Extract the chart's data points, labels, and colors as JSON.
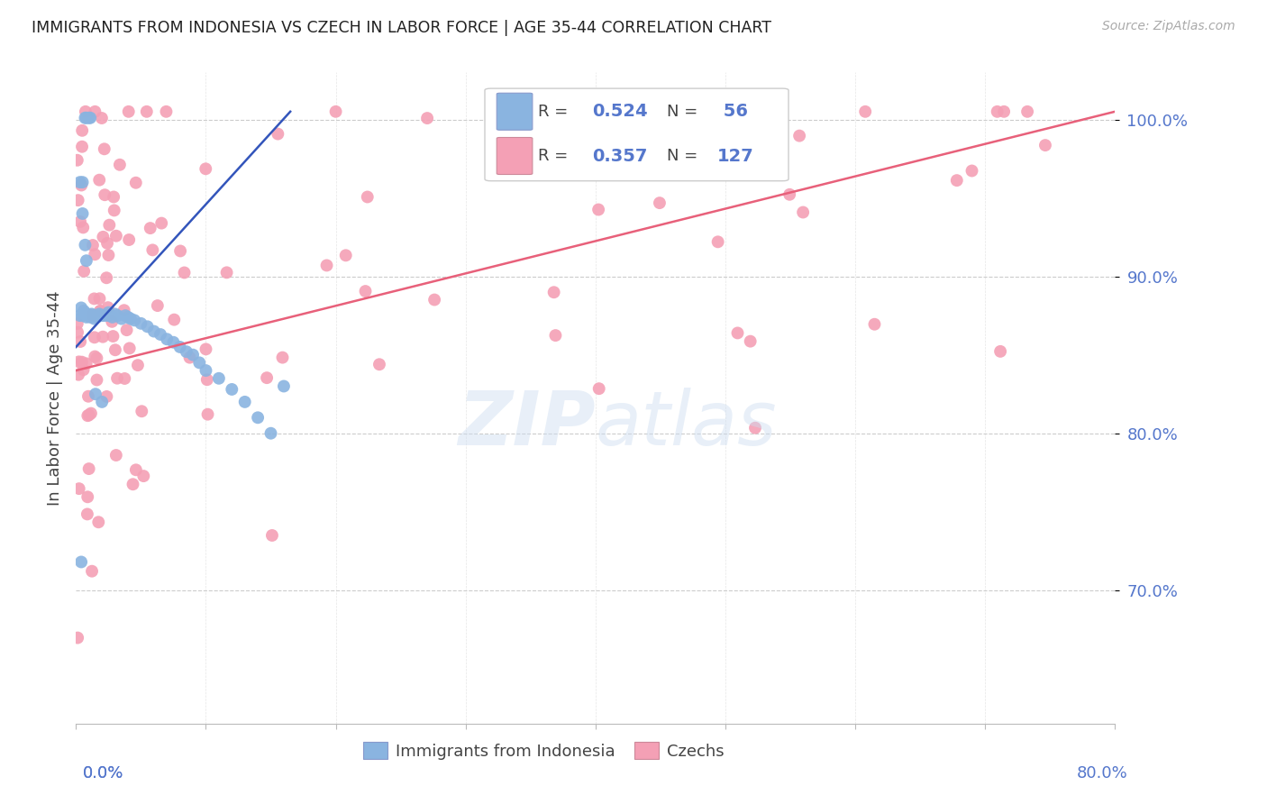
{
  "title": "IMMIGRANTS FROM INDONESIA VS CZECH IN LABOR FORCE | AGE 35-44 CORRELATION CHART",
  "source": "Source: ZipAtlas.com",
  "ylabel": "In Labor Force | Age 35-44",
  "ytick_vals": [
    0.7,
    0.8,
    0.9,
    1.0
  ],
  "xlim": [
    0.0,
    0.8
  ],
  "ylim": [
    0.615,
    1.03
  ],
  "indonesia_color": "#8ab4e0",
  "czech_color": "#f4a0b5",
  "indonesia_line_color": "#3355bb",
  "czech_line_color": "#e8607a",
  "indonesia_R": 0.524,
  "indonesia_N": 56,
  "czech_R": 0.357,
  "czech_N": 127,
  "legend_indonesia": "Immigrants from Indonesia",
  "legend_czech": "Czechs",
  "watermark_zip": "ZIP",
  "watermark_atlas": "atlas",
  "tick_color": "#5577cc",
  "grid_color": "#cccccc",
  "title_color": "#222222",
  "source_color": "#aaaaaa",
  "ylabel_color": "#444444"
}
